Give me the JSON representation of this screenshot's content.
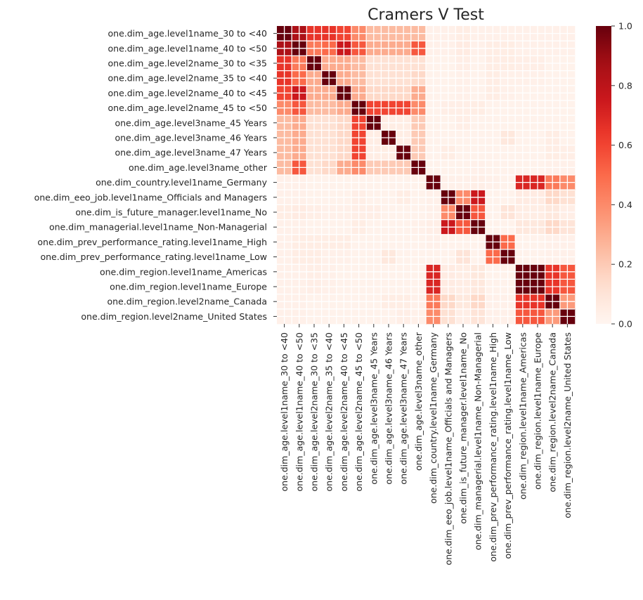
{
  "chart_data": {
    "type": "heatmap",
    "title": "Cramers V Test",
    "labels": [
      "one.dim_age.level1name_30 to <40",
      "one.dim_age.level1name_40 to <50",
      "one.dim_age.level2name_30 to <35",
      "one.dim_age.level2name_35 to <40",
      "one.dim_age.level2name_40 to <45",
      "one.dim_age.level2name_45 to <50",
      "one.dim_age.level3name_45 Years",
      "one.dim_age.level3name_46 Years",
      "one.dim_age.level3name_47 Years",
      "one.dim_age.level3name_other",
      "one.dim_country.level1name_Germany",
      "one.dim_eeo_job.level1name_Officials and Managers",
      "one.dim_is_future_manager.level1name_No",
      "one.dim_managerial.level1name_Non-Managerial",
      "one.dim_prev_performance_rating.level1name_High",
      "one.dim_prev_performance_rating.level1name_Low",
      "one.dim_region.level1name_Americas",
      "one.dim_region.level1name_Europe",
      "one.dim_region.level2name_Canada",
      "one.dim_region.level2name_United States"
    ],
    "values": [
      [
        1,
        0.85,
        0.65,
        0.65,
        0.6,
        0.4,
        0.25,
        0.25,
        0.25,
        0.25,
        0.03,
        0.03,
        0.05,
        0.03,
        0.03,
        0.03,
        0.03,
        0.03,
        0.03,
        0.03
      ],
      [
        0.85,
        1,
        0.45,
        0.5,
        0.75,
        0.55,
        0.3,
        0.3,
        0.3,
        0.55,
        0.03,
        0.03,
        0.06,
        0.03,
        0.05,
        0.05,
        0.03,
        0.03,
        0.03,
        0.03
      ],
      [
        0.65,
        0.45,
        1,
        0.3,
        0.3,
        0.25,
        0.12,
        0.12,
        0.12,
        0.12,
        0.02,
        0.02,
        0.04,
        0.02,
        0.05,
        0.05,
        0.04,
        0.04,
        0.02,
        0.02
      ],
      [
        0.65,
        0.5,
        0.3,
        1,
        0.3,
        0.25,
        0.12,
        0.12,
        0.12,
        0.15,
        0.02,
        0.02,
        0.03,
        0.02,
        0.05,
        0.03,
        0.03,
        0.03,
        0.02,
        0.02
      ],
      [
        0.6,
        0.75,
        0.3,
        0.3,
        1,
        0.3,
        0.15,
        0.15,
        0.15,
        0.3,
        0.02,
        0.02,
        0.03,
        0.02,
        0.05,
        0.03,
        0.02,
        0.02,
        0.02,
        0.02
      ],
      [
        0.4,
        0.55,
        0.25,
        0.25,
        0.3,
        1,
        0.6,
        0.6,
        0.6,
        0.4,
        0.02,
        0.04,
        0.04,
        0.05,
        0.02,
        0.02,
        0.02,
        0.02,
        0.02,
        0.02
      ],
      [
        0.25,
        0.3,
        0.12,
        0.12,
        0.15,
        0.6,
        1,
        0.05,
        0.05,
        0.2,
        0.02,
        0.02,
        0.04,
        0.02,
        0.02,
        0.02,
        0.02,
        0.02,
        0.02,
        0.02
      ],
      [
        0.25,
        0.3,
        0.12,
        0.12,
        0.15,
        0.6,
        0.05,
        1,
        0.05,
        0.2,
        0.02,
        0.02,
        0.02,
        0.02,
        0.02,
        0.08,
        0.02,
        0.02,
        0.05,
        0.02
      ],
      [
        0.25,
        0.3,
        0.12,
        0.12,
        0.15,
        0.6,
        0.05,
        0.05,
        1,
        0.2,
        0.02,
        0.05,
        0.02,
        0.02,
        0.02,
        0.02,
        0.02,
        0.02,
        0.05,
        0.04
      ],
      [
        0.25,
        0.55,
        0.12,
        0.15,
        0.3,
        0.4,
        0.2,
        0.2,
        0.2,
        1,
        0.02,
        0.02,
        0.02,
        0.03,
        0.02,
        0.02,
        0.02,
        0.02,
        0.03,
        0.03
      ],
      [
        0.03,
        0.03,
        0.02,
        0.02,
        0.02,
        0.02,
        0.02,
        0.02,
        0.02,
        0.02,
        1,
        0.03,
        0.03,
        0.04,
        0.03,
        0.02,
        0.7,
        0.7,
        0.45,
        0.4
      ],
      [
        0.03,
        0.03,
        0.02,
        0.02,
        0.02,
        0.04,
        0.02,
        0.02,
        0.05,
        0.02,
        0.03,
        1,
        0.4,
        0.75,
        0.02,
        0.02,
        0.06,
        0.06,
        0.15,
        0.12
      ],
      [
        0.05,
        0.06,
        0.04,
        0.03,
        0.03,
        0.04,
        0.04,
        0.02,
        0.02,
        0.02,
        0.03,
        0.4,
        1,
        0.55,
        0.02,
        0.1,
        0.05,
        0.05,
        0.08,
        0.04
      ],
      [
        0.03,
        0.03,
        0.02,
        0.02,
        0.02,
        0.05,
        0.02,
        0.02,
        0.02,
        0.03,
        0.04,
        0.75,
        0.55,
        1,
        0.02,
        0.02,
        0.08,
        0.08,
        0.15,
        0.1
      ],
      [
        0.03,
        0.05,
        0.05,
        0.05,
        0.05,
        0.02,
        0.02,
        0.02,
        0.02,
        0.02,
        0.03,
        0.02,
        0.02,
        0.02,
        1,
        0.5,
        0.02,
        0.02,
        0.03,
        0.03
      ],
      [
        0.03,
        0.05,
        0.05,
        0.03,
        0.03,
        0.02,
        0.02,
        0.08,
        0.02,
        0.02,
        0.02,
        0.02,
        0.1,
        0.02,
        0.5,
        1,
        0.02,
        0.02,
        0.03,
        0.03
      ],
      [
        0.03,
        0.03,
        0.04,
        0.03,
        0.02,
        0.02,
        0.02,
        0.02,
        0.02,
        0.02,
        0.7,
        0.06,
        0.05,
        0.08,
        0.02,
        0.02,
        1,
        1,
        0.65,
        0.55
      ],
      [
        0.03,
        0.03,
        0.04,
        0.03,
        0.02,
        0.02,
        0.02,
        0.02,
        0.02,
        0.02,
        0.7,
        0.06,
        0.05,
        0.08,
        0.02,
        0.02,
        1,
        1,
        0.65,
        0.55
      ],
      [
        0.03,
        0.03,
        0.02,
        0.02,
        0.02,
        0.02,
        0.02,
        0.05,
        0.05,
        0.03,
        0.45,
        0.15,
        0.08,
        0.15,
        0.03,
        0.03,
        0.65,
        0.65,
        1,
        0.35
      ],
      [
        0.03,
        0.03,
        0.02,
        0.02,
        0.02,
        0.02,
        0.02,
        0.02,
        0.04,
        0.03,
        0.4,
        0.12,
        0.04,
        0.1,
        0.03,
        0.03,
        0.55,
        0.55,
        0.35,
        1
      ]
    ],
    "colormap": "Reds",
    "vmin": 0,
    "vmax": 1,
    "colorbar_ticks": [
      "0.0",
      "0.2",
      "0.4",
      "0.6",
      "0.8",
      "1.0"
    ],
    "xlabel": "",
    "ylabel": ""
  }
}
